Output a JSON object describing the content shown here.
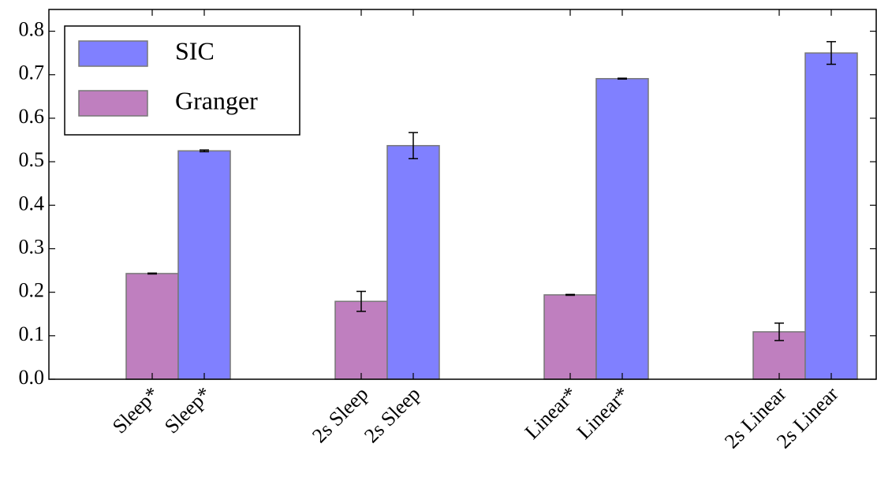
{
  "chart_data": {
    "type": "bar",
    "xtick_labels": [
      "Sleep*",
      "Sleep*",
      "2s Sleep",
      "2s Sleep",
      "Linear*",
      "Linear*",
      "2s Linear",
      "2s Linear"
    ],
    "series": [
      {
        "name": "Granger",
        "color": "#bf7fbf",
        "values": [
          0.243,
          0.179,
          0.194,
          0.109
        ],
        "errors": [
          0.001,
          0.023,
          0.001,
          0.02
        ]
      },
      {
        "name": "SIC",
        "color": "#8080ff",
        "values": [
          0.525,
          0.537,
          0.691,
          0.75
        ],
        "errors": [
          0.002,
          0.03,
          0.001,
          0.026
        ]
      }
    ],
    "ylim": [
      0,
      0.85
    ],
    "yticks": [
      {
        "value": 0,
        "label": "0.0"
      },
      0.1,
      0.2,
      0.3,
      0.4,
      0.5,
      0.6,
      0.7,
      0.8
    ],
    "legend": "upper left"
  }
}
